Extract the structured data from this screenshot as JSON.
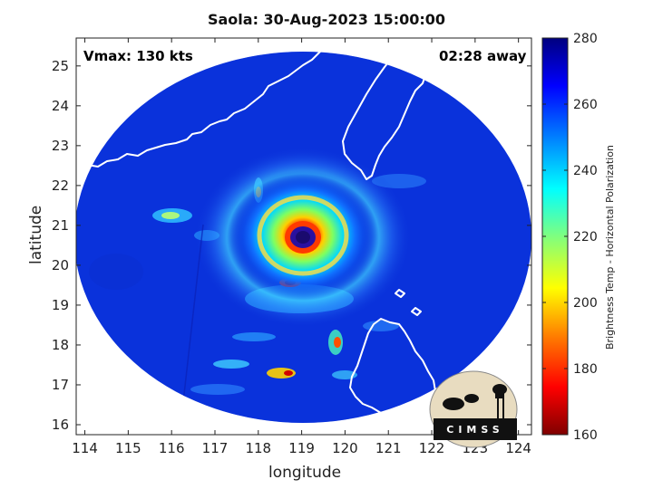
{
  "title": "Saola: 30-Aug-2023 15:00:00",
  "vmax_text": "Vmax: 130 kts",
  "away_text": "02:28 away",
  "xlabel": "longitude",
  "ylabel": "latitude",
  "x_ticks": [
    "114",
    "115",
    "116",
    "117",
    "118",
    "119",
    "120",
    "121",
    "122",
    "123",
    "124"
  ],
  "y_ticks": [
    "16",
    "17",
    "18",
    "19",
    "20",
    "21",
    "22",
    "23",
    "24",
    "25"
  ],
  "colorbar": {
    "label": "Brightness Temp - Horizontal Polarization",
    "ticks": [
      "280",
      "260",
      "240",
      "220",
      "200",
      "180",
      "160"
    ],
    "min": 160,
    "max": 280
  },
  "map": {
    "lon_range": [
      113.8,
      124.3
    ],
    "lat_range": [
      15.75,
      25.7
    ],
    "storm_center": {
      "lon": 119.1,
      "lat": 20.7
    },
    "colors": {
      "background": "#0a2fd8",
      "outside": "#ffffff",
      "coast": "#ffffff",
      "eye": "#1a0a6e"
    }
  },
  "logo": {
    "text": "CIMSS"
  }
}
